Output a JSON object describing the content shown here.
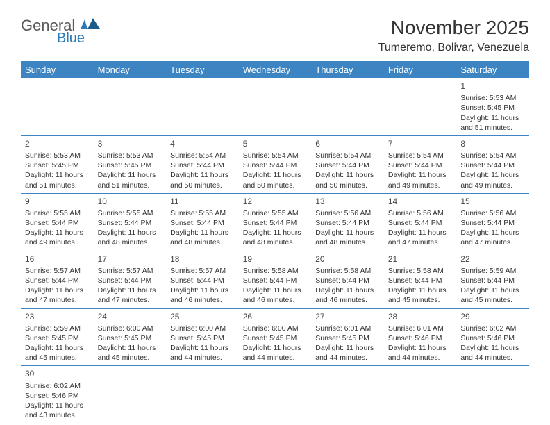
{
  "brand": {
    "general": "General",
    "blue": "Blue"
  },
  "title": "November 2025",
  "location": "Tumeremo, Bolivar, Venezuela",
  "colors": {
    "header_bg": "#3c85c2",
    "header_text": "#ffffff",
    "border": "#3c85c2",
    "brand_blue": "#2a7ab8",
    "text": "#333333"
  },
  "weekdays": [
    "Sunday",
    "Monday",
    "Tuesday",
    "Wednesday",
    "Thursday",
    "Friday",
    "Saturday"
  ],
  "weeks": [
    [
      {
        "day": "",
        "sunrise": "",
        "sunset": "",
        "daylight": ""
      },
      {
        "day": "",
        "sunrise": "",
        "sunset": "",
        "daylight": ""
      },
      {
        "day": "",
        "sunrise": "",
        "sunset": "",
        "daylight": ""
      },
      {
        "day": "",
        "sunrise": "",
        "sunset": "",
        "daylight": ""
      },
      {
        "day": "",
        "sunrise": "",
        "sunset": "",
        "daylight": ""
      },
      {
        "day": "",
        "sunrise": "",
        "sunset": "",
        "daylight": ""
      },
      {
        "day": "1",
        "sunrise": "Sunrise: 5:53 AM",
        "sunset": "Sunset: 5:45 PM",
        "daylight": "Daylight: 11 hours and 51 minutes."
      }
    ],
    [
      {
        "day": "2",
        "sunrise": "Sunrise: 5:53 AM",
        "sunset": "Sunset: 5:45 PM",
        "daylight": "Daylight: 11 hours and 51 minutes."
      },
      {
        "day": "3",
        "sunrise": "Sunrise: 5:53 AM",
        "sunset": "Sunset: 5:45 PM",
        "daylight": "Daylight: 11 hours and 51 minutes."
      },
      {
        "day": "4",
        "sunrise": "Sunrise: 5:54 AM",
        "sunset": "Sunset: 5:44 PM",
        "daylight": "Daylight: 11 hours and 50 minutes."
      },
      {
        "day": "5",
        "sunrise": "Sunrise: 5:54 AM",
        "sunset": "Sunset: 5:44 PM",
        "daylight": "Daylight: 11 hours and 50 minutes."
      },
      {
        "day": "6",
        "sunrise": "Sunrise: 5:54 AM",
        "sunset": "Sunset: 5:44 PM",
        "daylight": "Daylight: 11 hours and 50 minutes."
      },
      {
        "day": "7",
        "sunrise": "Sunrise: 5:54 AM",
        "sunset": "Sunset: 5:44 PM",
        "daylight": "Daylight: 11 hours and 49 minutes."
      },
      {
        "day": "8",
        "sunrise": "Sunrise: 5:54 AM",
        "sunset": "Sunset: 5:44 PM",
        "daylight": "Daylight: 11 hours and 49 minutes."
      }
    ],
    [
      {
        "day": "9",
        "sunrise": "Sunrise: 5:55 AM",
        "sunset": "Sunset: 5:44 PM",
        "daylight": "Daylight: 11 hours and 49 minutes."
      },
      {
        "day": "10",
        "sunrise": "Sunrise: 5:55 AM",
        "sunset": "Sunset: 5:44 PM",
        "daylight": "Daylight: 11 hours and 48 minutes."
      },
      {
        "day": "11",
        "sunrise": "Sunrise: 5:55 AM",
        "sunset": "Sunset: 5:44 PM",
        "daylight": "Daylight: 11 hours and 48 minutes."
      },
      {
        "day": "12",
        "sunrise": "Sunrise: 5:55 AM",
        "sunset": "Sunset: 5:44 PM",
        "daylight": "Daylight: 11 hours and 48 minutes."
      },
      {
        "day": "13",
        "sunrise": "Sunrise: 5:56 AM",
        "sunset": "Sunset: 5:44 PM",
        "daylight": "Daylight: 11 hours and 48 minutes."
      },
      {
        "day": "14",
        "sunrise": "Sunrise: 5:56 AM",
        "sunset": "Sunset: 5:44 PM",
        "daylight": "Daylight: 11 hours and 47 minutes."
      },
      {
        "day": "15",
        "sunrise": "Sunrise: 5:56 AM",
        "sunset": "Sunset: 5:44 PM",
        "daylight": "Daylight: 11 hours and 47 minutes."
      }
    ],
    [
      {
        "day": "16",
        "sunrise": "Sunrise: 5:57 AM",
        "sunset": "Sunset: 5:44 PM",
        "daylight": "Daylight: 11 hours and 47 minutes."
      },
      {
        "day": "17",
        "sunrise": "Sunrise: 5:57 AM",
        "sunset": "Sunset: 5:44 PM",
        "daylight": "Daylight: 11 hours and 47 minutes."
      },
      {
        "day": "18",
        "sunrise": "Sunrise: 5:57 AM",
        "sunset": "Sunset: 5:44 PM",
        "daylight": "Daylight: 11 hours and 46 minutes."
      },
      {
        "day": "19",
        "sunrise": "Sunrise: 5:58 AM",
        "sunset": "Sunset: 5:44 PM",
        "daylight": "Daylight: 11 hours and 46 minutes."
      },
      {
        "day": "20",
        "sunrise": "Sunrise: 5:58 AM",
        "sunset": "Sunset: 5:44 PM",
        "daylight": "Daylight: 11 hours and 46 minutes."
      },
      {
        "day": "21",
        "sunrise": "Sunrise: 5:58 AM",
        "sunset": "Sunset: 5:44 PM",
        "daylight": "Daylight: 11 hours and 45 minutes."
      },
      {
        "day": "22",
        "sunrise": "Sunrise: 5:59 AM",
        "sunset": "Sunset: 5:44 PM",
        "daylight": "Daylight: 11 hours and 45 minutes."
      }
    ],
    [
      {
        "day": "23",
        "sunrise": "Sunrise: 5:59 AM",
        "sunset": "Sunset: 5:45 PM",
        "daylight": "Daylight: 11 hours and 45 minutes."
      },
      {
        "day": "24",
        "sunrise": "Sunrise: 6:00 AM",
        "sunset": "Sunset: 5:45 PM",
        "daylight": "Daylight: 11 hours and 45 minutes."
      },
      {
        "day": "25",
        "sunrise": "Sunrise: 6:00 AM",
        "sunset": "Sunset: 5:45 PM",
        "daylight": "Daylight: 11 hours and 44 minutes."
      },
      {
        "day": "26",
        "sunrise": "Sunrise: 6:00 AM",
        "sunset": "Sunset: 5:45 PM",
        "daylight": "Daylight: 11 hours and 44 minutes."
      },
      {
        "day": "27",
        "sunrise": "Sunrise: 6:01 AM",
        "sunset": "Sunset: 5:45 PM",
        "daylight": "Daylight: 11 hours and 44 minutes."
      },
      {
        "day": "28",
        "sunrise": "Sunrise: 6:01 AM",
        "sunset": "Sunset: 5:46 PM",
        "daylight": "Daylight: 11 hours and 44 minutes."
      },
      {
        "day": "29",
        "sunrise": "Sunrise: 6:02 AM",
        "sunset": "Sunset: 5:46 PM",
        "daylight": "Daylight: 11 hours and 44 minutes."
      }
    ],
    [
      {
        "day": "30",
        "sunrise": "Sunrise: 6:02 AM",
        "sunset": "Sunset: 5:46 PM",
        "daylight": "Daylight: 11 hours and 43 minutes."
      },
      {
        "day": "",
        "sunrise": "",
        "sunset": "",
        "daylight": ""
      },
      {
        "day": "",
        "sunrise": "",
        "sunset": "",
        "daylight": ""
      },
      {
        "day": "",
        "sunrise": "",
        "sunset": "",
        "daylight": ""
      },
      {
        "day": "",
        "sunrise": "",
        "sunset": "",
        "daylight": ""
      },
      {
        "day": "",
        "sunrise": "",
        "sunset": "",
        "daylight": ""
      },
      {
        "day": "",
        "sunrise": "",
        "sunset": "",
        "daylight": ""
      }
    ]
  ]
}
